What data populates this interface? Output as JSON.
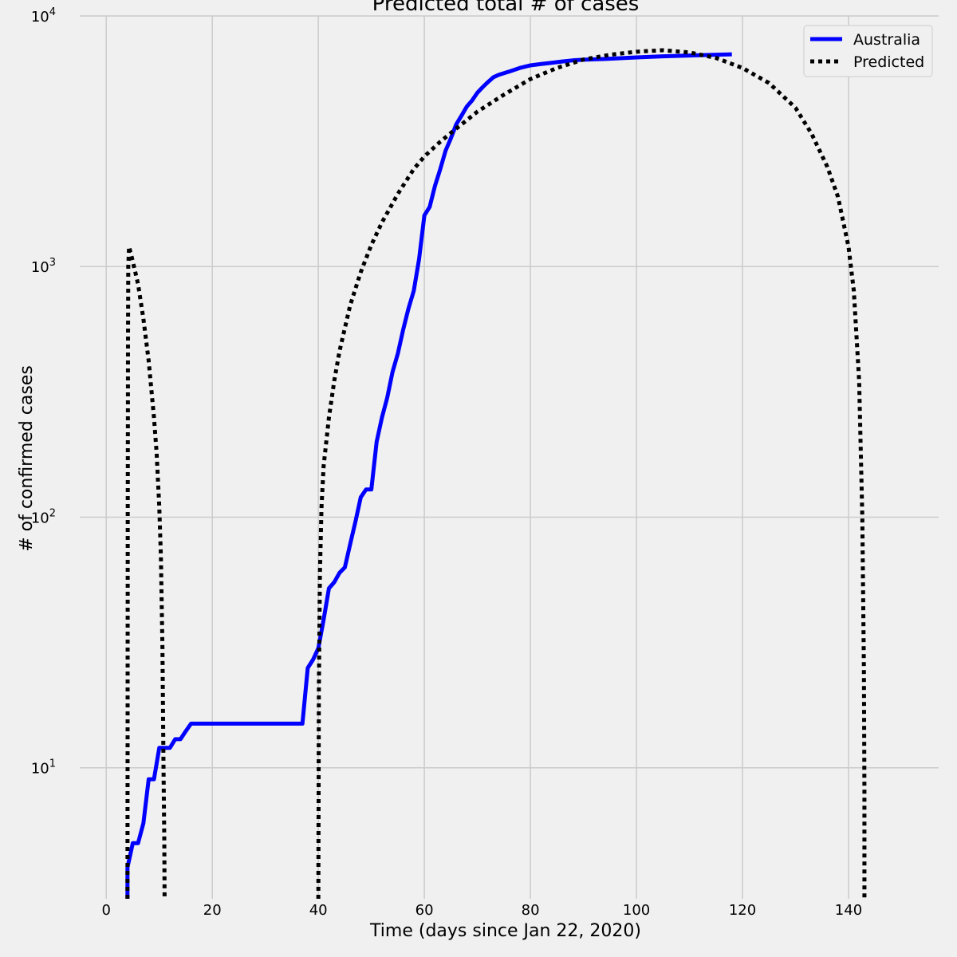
{
  "chart_data": {
    "type": "line",
    "title": "Predicted total # of cases",
    "xlabel": "Time (days since Jan 22, 2020)",
    "ylabel": "# of confirmed cases",
    "yscale": "log",
    "xlim": [
      -5,
      157
    ],
    "ylim": [
      3.0,
      10000
    ],
    "grid": true,
    "legend_position": "top-right",
    "x_ticks": [
      0,
      20,
      40,
      60,
      80,
      100,
      120,
      140
    ],
    "x_tick_labels": [
      "0",
      "20",
      "40",
      "60",
      "80",
      "100",
      "120",
      "140"
    ],
    "y_ticks": [
      10,
      100,
      1000,
      10000
    ],
    "y_tick_labels": [
      {
        "base": "10",
        "exp": "1"
      },
      {
        "base": "10",
        "exp": "2"
      },
      {
        "base": "10",
        "exp": "3"
      },
      {
        "base": "10",
        "exp": "4"
      }
    ],
    "series": [
      {
        "name": "Australia",
        "color": "#0000ff",
        "style": "solid",
        "x": [
          4,
          4,
          5,
          6,
          7,
          8,
          9,
          10,
          11,
          12,
          13,
          14,
          15,
          16,
          17,
          20,
          25,
          30,
          35,
          37,
          38,
          39,
          40,
          41,
          42,
          43,
          44,
          45,
          46,
          47,
          48,
          49,
          50,
          51,
          52,
          53,
          54,
          55,
          56,
          57,
          58,
          59,
          60,
          61,
          62,
          63,
          64,
          65,
          66,
          67,
          68,
          69,
          70,
          71,
          72,
          73,
          74,
          76,
          78,
          80,
          82,
          84,
          86,
          88,
          90,
          95,
          100,
          105,
          110,
          115,
          118
        ],
        "y": [
          3,
          4,
          5,
          5,
          6,
          9,
          9,
          12,
          12,
          12,
          13,
          13,
          14,
          15,
          15,
          15,
          15,
          15,
          15,
          15,
          25,
          27,
          30,
          39,
          52,
          55,
          60,
          63,
          78,
          96,
          120,
          129,
          129,
          200,
          250,
          300,
          380,
          450,
          560,
          680,
          800,
          1070,
          1600,
          1730,
          2100,
          2450,
          2900,
          3250,
          3690,
          4000,
          4350,
          4600,
          4940,
          5200,
          5450,
          5690,
          5820,
          6000,
          6200,
          6350,
          6430,
          6500,
          6580,
          6650,
          6690,
          6750,
          6830,
          6900,
          6950,
          7000,
          7030
        ]
      },
      {
        "name": "Predicted",
        "color": "#000000",
        "style": "dotted",
        "segments": [
          {
            "x": [
              4,
              4.02,
              4.05,
              4.1,
              4.15,
              4.3,
              5,
              6,
              7,
              8,
              9,
              9.5,
              10,
              10.3,
              10.6,
              10.8,
              10.95,
              11
            ],
            "y": [
              3,
              10,
              100,
              500,
              1000,
              1200,
              1050,
              850,
              620,
              420,
              250,
              180,
              110,
              70,
              30,
              10,
              5,
              3
            ]
          },
          {
            "x": [
              40,
              40.1,
              40.3,
              40.6,
              41,
              42,
              43,
              44,
              46,
              48,
              50,
              52,
              55,
              58,
              60,
              63,
              66,
              70,
              75,
              80,
              85,
              90,
              95,
              100,
              105,
              110,
              115,
              120,
              125,
              130,
              133,
              136,
              138,
              140,
              141,
              142,
              142.6,
              142.9,
              143,
              143
            ],
            "y": [
              3,
              20,
              60,
              110,
              160,
              250,
              350,
              460,
              700,
              950,
              1220,
              1500,
              1950,
              2450,
              2750,
              3150,
              3550,
              4150,
              4850,
              5600,
              6200,
              6700,
              7000,
              7200,
              7300,
              7150,
              6800,
              6200,
              5400,
              4300,
              3400,
              2500,
              1900,
              1200,
              800,
              350,
              100,
              25,
              8,
              3
            ]
          }
        ]
      }
    ]
  }
}
